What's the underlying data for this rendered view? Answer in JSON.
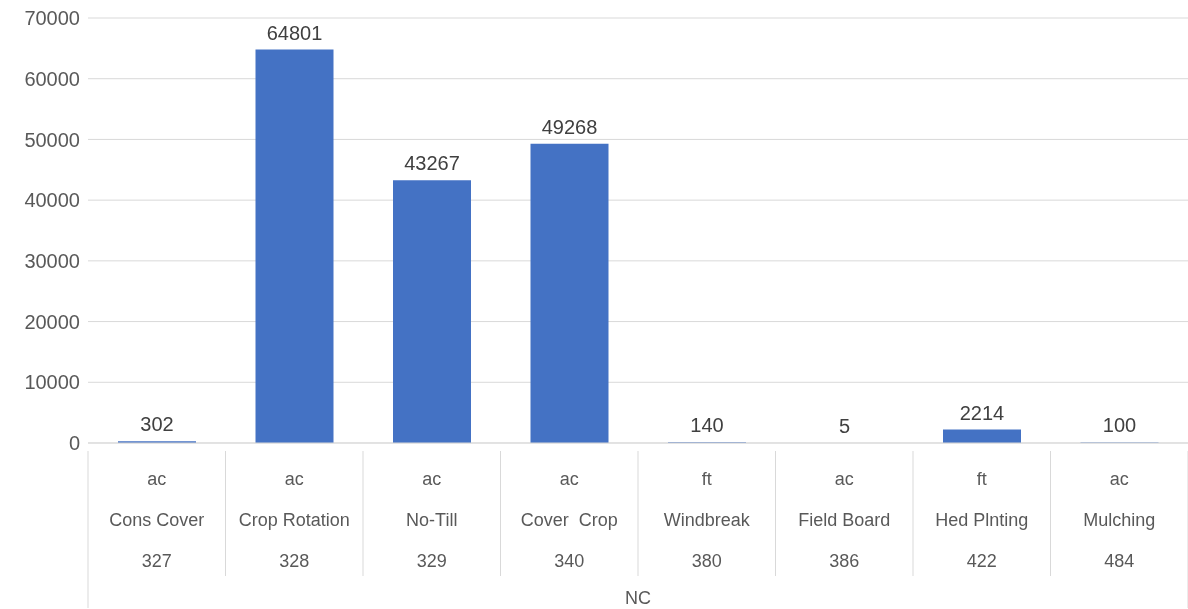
{
  "chart_data": {
    "type": "bar",
    "categories": [
      "ac\nCons Cover\n327",
      "ac\nCrop Rotation\n328",
      "ac\nNo-Till\n329",
      "ac\nCover  Crop\n340",
      "ft\nWindbreak\n380",
      "ac\nField Board\n386",
      "ft\nHed Plnting\n422",
      "ac\nMulching\n484"
    ],
    "values": [
      302,
      64801,
      43267,
      49268,
      140,
      5,
      2214,
      100
    ],
    "color": "#4472c4",
    "xlabel": "NC",
    "ylim": [
      0,
      70000
    ],
    "yticks": [
      0,
      10000,
      20000,
      30000,
      40000,
      50000,
      60000,
      70000
    ],
    "grid": "y",
    "data_labels": true
  }
}
